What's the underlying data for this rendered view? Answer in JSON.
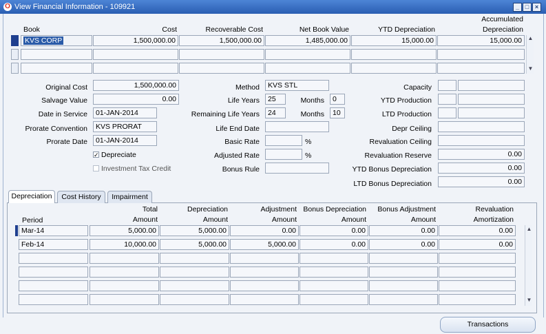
{
  "window": {
    "title": "View Financial Information - 109921"
  },
  "grid": {
    "headers": {
      "book": "Book",
      "cost": "Cost",
      "recoverable_cost": "Recoverable Cost",
      "net_book_value": "Net Book Value",
      "ytd_depreciation": "YTD Depreciation",
      "accumulated_line1": "Accumulated",
      "accumulated_line2": "Depreciation"
    },
    "rows": [
      {
        "book": "KVS CORP",
        "cost": "1,500,000.00",
        "recoverable_cost": "1,500,000.00",
        "net_book_value": "1,485,000.00",
        "ytd_depreciation": "15,000.00",
        "accumulated_depreciation": "15,000.00"
      }
    ]
  },
  "details": {
    "original_cost": {
      "label": "Original Cost",
      "value": "1,500,000.00"
    },
    "salvage_value": {
      "label": "Salvage Value",
      "value": "0.00"
    },
    "date_in_service": {
      "label": "Date in Service",
      "value": "01-JAN-2014"
    },
    "prorate_convention": {
      "label": "Prorate Convention",
      "value": "KVS PRORAT"
    },
    "prorate_date": {
      "label": "Prorate Date",
      "value": "01-JAN-2014"
    },
    "depreciate": {
      "label": "Depreciate",
      "checked": true
    },
    "investment_tax_credit": {
      "label": "Investment Tax Credit",
      "checked": false
    },
    "method": {
      "label": "Method",
      "value": "KVS STL"
    },
    "life_years": {
      "label": "Life Years",
      "value": "25"
    },
    "life_months": {
      "label": "Months",
      "value": "0"
    },
    "remaining_life_years": {
      "label": "Remaining Life Years",
      "value": "24"
    },
    "remaining_months": {
      "label": "Months",
      "value": "10"
    },
    "life_end_date": {
      "label": "Life End Date",
      "value": ""
    },
    "basic_rate": {
      "label": "Basic Rate",
      "value": "",
      "unit": "%"
    },
    "adjusted_rate": {
      "label": "Adjusted Rate",
      "value": "",
      "unit": "%"
    },
    "bonus_rule": {
      "label": "Bonus Rule",
      "value": ""
    },
    "capacity": {
      "label": "Capacity",
      "value": ""
    },
    "ytd_production": {
      "label": "YTD Production",
      "value": ""
    },
    "ltd_production": {
      "label": "LTD Production",
      "value": ""
    },
    "depr_ceiling": {
      "label": "Depr Ceiling",
      "value": ""
    },
    "revaluation_ceiling": {
      "label": "Revaluation Ceiling",
      "value": ""
    },
    "revaluation_reserve": {
      "label": "Revaluation Reserve",
      "value": "0.00"
    },
    "ytd_bonus_depreciation": {
      "label": "YTD Bonus Depreciation",
      "value": "0.00"
    },
    "ltd_bonus_depreciation": {
      "label": "LTD Bonus Depreciation",
      "value": "0.00"
    }
  },
  "tabs": [
    {
      "label": "Depreciation",
      "active": true
    },
    {
      "label": "Cost History",
      "active": false
    },
    {
      "label": "Impairment",
      "active": false
    }
  ],
  "dep_table": {
    "headers": {
      "period": "Period",
      "total_1": "Total",
      "total_2": "Amount",
      "dep_1": "Depreciation",
      "dep_2": "Amount",
      "adj_1": "Adjustment",
      "adj_2": "Amount",
      "bdep_1": "Bonus Depreciation",
      "bdep_2": "Amount",
      "badj_1": "Bonus Adjustment",
      "badj_2": "Amount",
      "reval_1": "Revaluation",
      "reval_2": "Amortization"
    },
    "rows": [
      {
        "period": "Mar-14",
        "total": "5,000.00",
        "depreciation": "5,000.00",
        "adjustment": "0.00",
        "bonus_depreciation": "0.00",
        "bonus_adjustment": "0.00",
        "revaluation": "0.00"
      },
      {
        "period": "Feb-14",
        "total": "10,000.00",
        "depreciation": "5,000.00",
        "adjustment": "5,000.00",
        "bonus_depreciation": "0.00",
        "bonus_adjustment": "0.00",
        "revaluation": "0.00"
      }
    ]
  },
  "buttons": {
    "transactions": "Transactions"
  },
  "colors": {
    "title_bar": "#3a6fc4",
    "active_indicator": "#1f3f8f",
    "selection": "#2a5ba8"
  }
}
